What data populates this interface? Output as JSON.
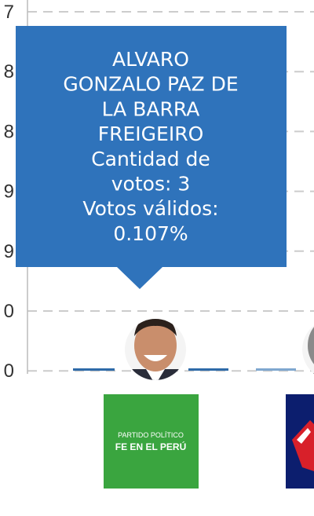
{
  "axis_labels": [
    "7",
    "8",
    "8",
    "9",
    "9",
    "0",
    "0"
  ],
  "tooltip": {
    "lines": [
      "ALVARO",
      "GONZALO PAZ DE",
      "LA BARRA",
      "FREIGEIRO",
      "Cantidad de",
      "votos: 3",
      "Votos válidos:",
      "0.107%"
    ]
  },
  "logo": {
    "lines": [
      "PARTIDO POLÍTICO",
      "FE EN EL PERÚ"
    ]
  }
}
